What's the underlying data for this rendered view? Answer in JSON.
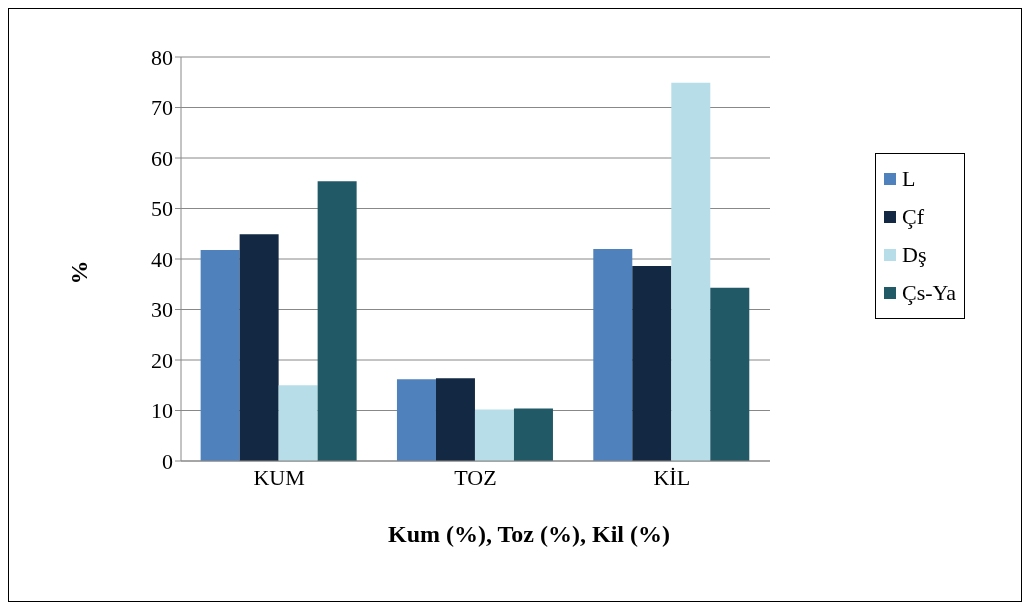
{
  "chart_data": {
    "type": "bar",
    "xlabel": "Kum (%), Toz (%), Kil (%)",
    "ylabel": "%",
    "categories": [
      "KUM",
      "TOZ",
      "KİL"
    ],
    "series": [
      {
        "name": "L",
        "color": "#4f81bd",
        "values": [
          41.8,
          16.2,
          42
        ]
      },
      {
        "name": "Çf",
        "color": "#132843",
        "values": [
          44.9,
          16.4,
          38.6
        ]
      },
      {
        "name": "Dş",
        "color": "#b7dde8",
        "values": [
          15,
          10.2,
          74.9
        ]
      },
      {
        "name": "Çs-Ya",
        "color": "#215967",
        "values": [
          55.4,
          10.4,
          34.3
        ]
      }
    ],
    "ylim": [
      0,
      80
    ],
    "yticks": [
      0,
      10,
      20,
      30,
      40,
      50,
      60,
      70,
      80
    ],
    "grid": "y",
    "legend": "right"
  }
}
